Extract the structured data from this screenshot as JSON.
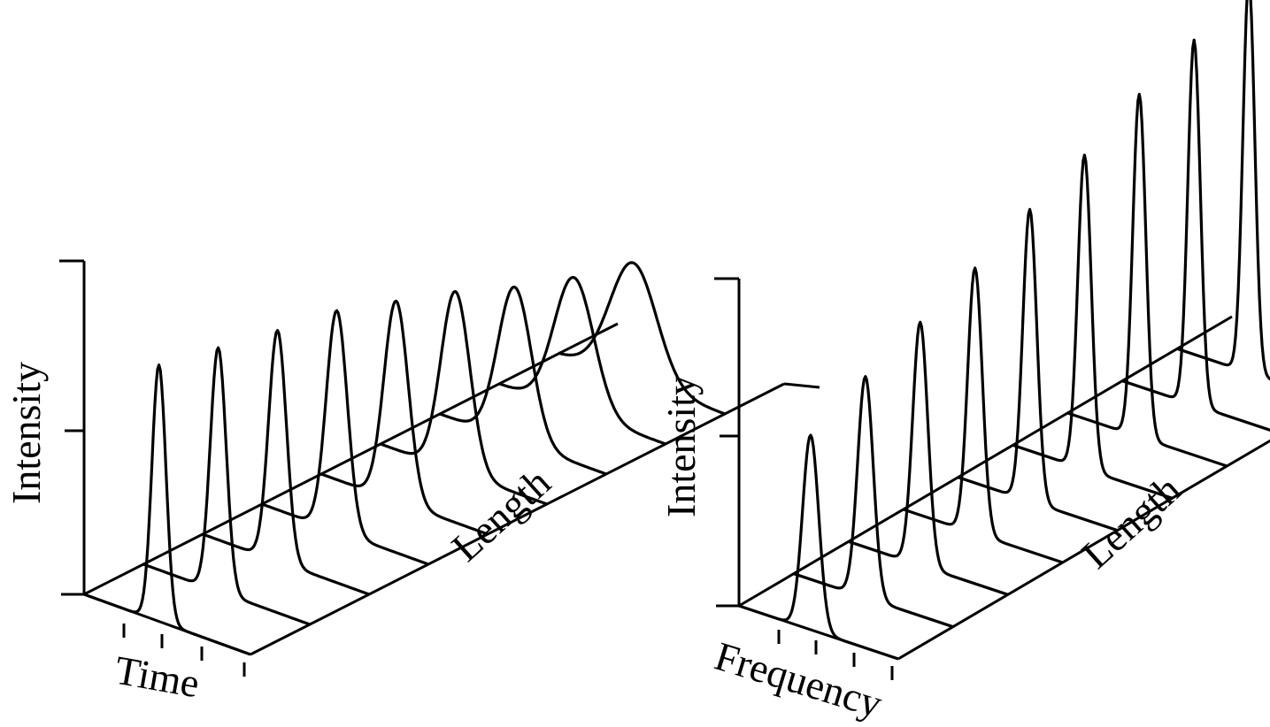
{
  "chart_data": [
    {
      "type": "waterfall",
      "axis_labels": {
        "x": "Time",
        "y": "Intensity",
        "depth": "Length"
      },
      "slices": [
        {
          "peak": 1.0,
          "width": 0.3
        },
        {
          "peak": 0.95,
          "width": 0.34
        },
        {
          "peak": 0.9,
          "width": 0.38
        },
        {
          "peak": 0.86,
          "width": 0.45
        },
        {
          "peak": 0.78,
          "width": 0.52
        },
        {
          "peak": 0.7,
          "width": 0.62
        },
        {
          "peak": 0.6,
          "width": 0.72
        },
        {
          "peak": 0.52,
          "width": 0.85
        },
        {
          "peak": 0.46,
          "width": 1.0
        }
      ]
    },
    {
      "type": "waterfall",
      "axis_labels": {
        "x": "Frequency",
        "y": "Intensity",
        "depth": "Length"
      },
      "slices": [
        {
          "peak": 0.88,
          "width": 0.3
        },
        {
          "peak": 1.0,
          "width": 0.29
        },
        {
          "peak": 1.1,
          "width": 0.28
        },
        {
          "peak": 1.2,
          "width": 0.27
        },
        {
          "peak": 1.32,
          "width": 0.26
        },
        {
          "peak": 1.42,
          "width": 0.25
        },
        {
          "peak": 1.55,
          "width": 0.24
        },
        {
          "peak": 1.65,
          "width": 0.23
        },
        {
          "peak": 1.78,
          "width": 0.22
        }
      ]
    }
  ]
}
